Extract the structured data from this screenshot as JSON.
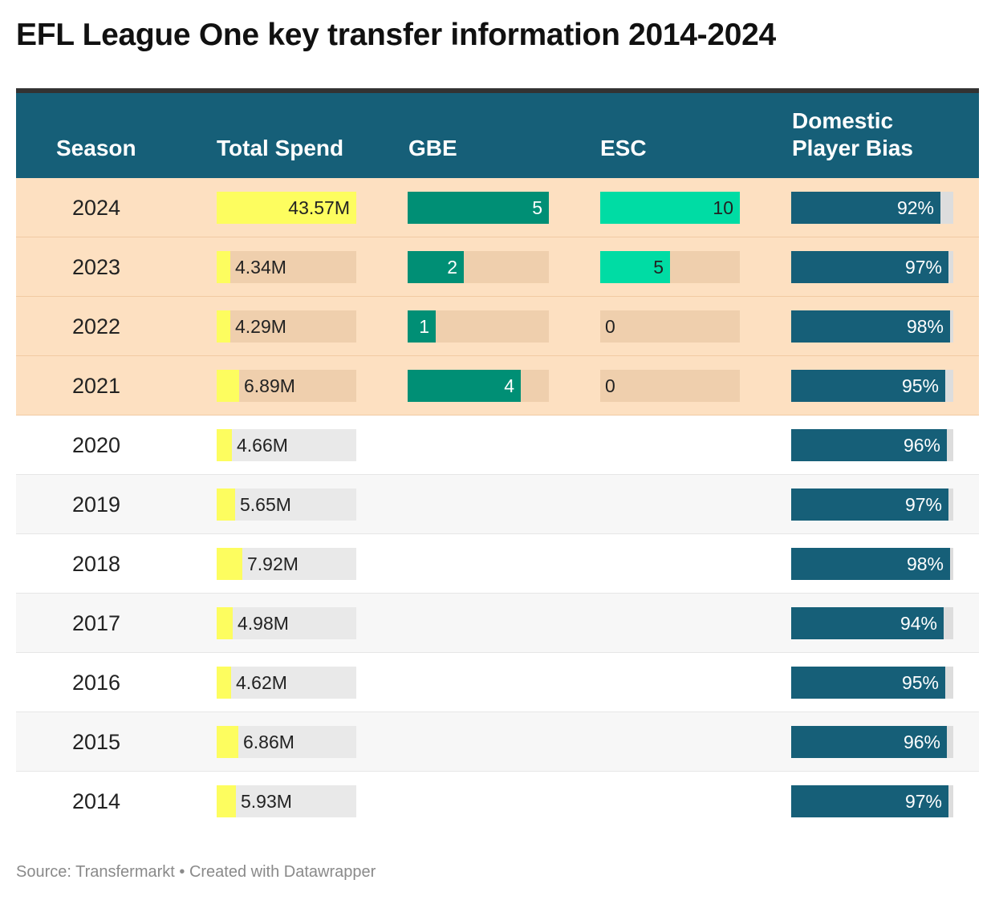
{
  "chart_data": {
    "type": "table",
    "title": "EFL League One key transfer information 2014-2024",
    "columns": [
      "Season",
      "Total Spend",
      "GBE",
      "ESC",
      "Domestic Player Bias"
    ],
    "highlighted_seasons": [
      "2024",
      "2023",
      "2022",
      "2021"
    ],
    "scales": {
      "spend_max": 43.57,
      "gbe_max": 5,
      "esc_max": 10,
      "dom_max": 100
    },
    "rows": [
      {
        "season": "2024",
        "spend": 43.57,
        "spend_label": "43.57M",
        "gbe": 5,
        "gbe_label": "5",
        "esc": 10,
        "esc_label": "10",
        "dom": 92,
        "dom_label": "92%"
      },
      {
        "season": "2023",
        "spend": 4.34,
        "spend_label": "4.34M",
        "gbe": 2,
        "gbe_label": "2",
        "esc": 5,
        "esc_label": "5",
        "dom": 97,
        "dom_label": "97%"
      },
      {
        "season": "2022",
        "spend": 4.29,
        "spend_label": "4.29M",
        "gbe": 1,
        "gbe_label": "1",
        "esc": 0,
        "esc_label": "0",
        "dom": 98,
        "dom_label": "98%"
      },
      {
        "season": "2021",
        "spend": 6.89,
        "spend_label": "6.89M",
        "gbe": 4,
        "gbe_label": "4",
        "esc": 0,
        "esc_label": "0",
        "dom": 95,
        "dom_label": "95%"
      },
      {
        "season": "2020",
        "spend": 4.66,
        "spend_label": "4.66M",
        "gbe": null,
        "gbe_label": null,
        "esc": null,
        "esc_label": null,
        "dom": 96,
        "dom_label": "96%"
      },
      {
        "season": "2019",
        "spend": 5.65,
        "spend_label": "5.65M",
        "gbe": null,
        "gbe_label": null,
        "esc": null,
        "esc_label": null,
        "dom": 97,
        "dom_label": "97%"
      },
      {
        "season": "2018",
        "spend": 7.92,
        "spend_label": "7.92M",
        "gbe": null,
        "gbe_label": null,
        "esc": null,
        "esc_label": null,
        "dom": 98,
        "dom_label": "98%"
      },
      {
        "season": "2017",
        "spend": 4.98,
        "spend_label": "4.98M",
        "gbe": null,
        "gbe_label": null,
        "esc": null,
        "esc_label": null,
        "dom": 94,
        "dom_label": "94%"
      },
      {
        "season": "2016",
        "spend": 4.62,
        "spend_label": "4.62M",
        "gbe": null,
        "gbe_label": null,
        "esc": null,
        "esc_label": null,
        "dom": 95,
        "dom_label": "95%"
      },
      {
        "season": "2015",
        "spend": 6.86,
        "spend_label": "6.86M",
        "gbe": null,
        "gbe_label": null,
        "esc": null,
        "esc_label": null,
        "dom": 96,
        "dom_label": "96%"
      },
      {
        "season": "2014",
        "spend": 5.93,
        "spend_label": "5.93M",
        "gbe": null,
        "gbe_label": null,
        "esc": null,
        "esc_label": null,
        "dom": 97,
        "dom_label": "97%"
      }
    ]
  },
  "header": {
    "season": "Season",
    "total_spend": "Total Spend",
    "gbe": "GBE",
    "esc": "ESC",
    "domestic_line1": "Domestic",
    "domestic_line2": "Player Bias"
  },
  "footer": {
    "source": "Source: Transfermarkt • Created with Datawrapper"
  },
  "colors": {
    "header_bg": "#165f78",
    "spend_fill": "#fdfd5f",
    "gbe_fill": "#008f75",
    "esc_fill": "#00dca4",
    "dom_fill": "#165f78",
    "track_highlight": "#efcfad",
    "track_plain": "#e9e9e9",
    "track_dom": "#dddddd"
  }
}
